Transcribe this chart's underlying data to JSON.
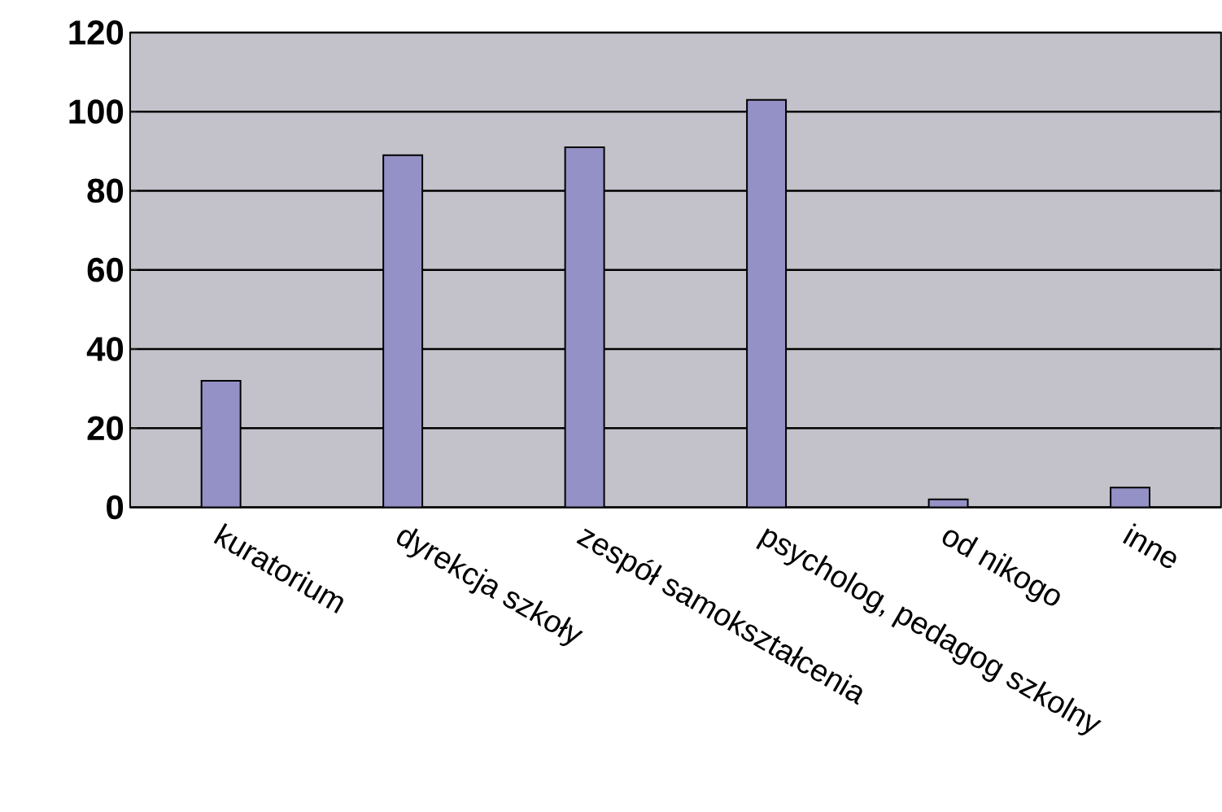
{
  "chart_data": {
    "type": "bar",
    "categories": [
      "kuratorium",
      "dyrekcja szkoły",
      "zespół samokształcenia",
      "psycholog, pedagog szkolny",
      "od nikogo",
      "inne"
    ],
    "values": [
      32,
      89,
      91,
      103,
      2,
      5
    ],
    "color": "#9491c6",
    "ylim": [
      0,
      120
    ],
    "yticks": [
      0,
      20,
      40,
      60,
      80,
      100,
      120
    ],
    "grid": "y"
  }
}
